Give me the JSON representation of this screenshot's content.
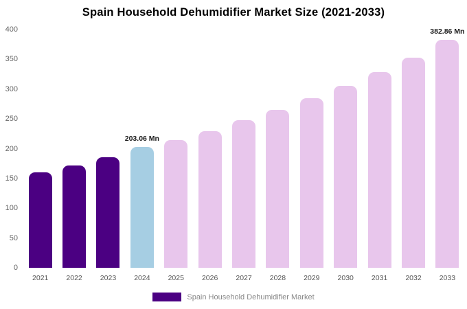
{
  "title": "Spain Household Dehumidifier Market Size (2021-2033)",
  "legend": {
    "label": "Spain Household Dehumidifier Market",
    "swatch_color": "#4B0082"
  },
  "colors": {
    "historical": "#4B0082",
    "current_year": "#a6cee3",
    "forecast": "#e8c6ec"
  },
  "chart_data": {
    "type": "bar",
    "title": "Spain Household Dehumidifier Market Size (2021-2033)",
    "categories": [
      "2021",
      "2022",
      "2023",
      "2024",
      "2025",
      "2026",
      "2027",
      "2028",
      "2029",
      "2030",
      "2031",
      "2032",
      "2033"
    ],
    "values": [
      160,
      172,
      186,
      203.06,
      215,
      230,
      248,
      265,
      285,
      306,
      329,
      353,
      382.86
    ],
    "bar_colors": [
      "#4B0082",
      "#4B0082",
      "#4B0082",
      "#a6cee3",
      "#e8c6ec",
      "#e8c6ec",
      "#e8c6ec",
      "#e8c6ec",
      "#e8c6ec",
      "#e8c6ec",
      "#e8c6ec",
      "#e8c6ec",
      "#e8c6ec"
    ],
    "value_labels": [
      "",
      "",
      "",
      "203.06 Mn",
      "",
      "",
      "",
      "",
      "",
      "",
      "",
      "",
      "382.86 Mn"
    ],
    "xlabel": "",
    "ylabel": "",
    "ylim": [
      0,
      400
    ],
    "ytick_step": 50,
    "grid": false,
    "legend_position": "bottom",
    "legend_entries": [
      "Spain Household Dehumidifier Market"
    ]
  }
}
